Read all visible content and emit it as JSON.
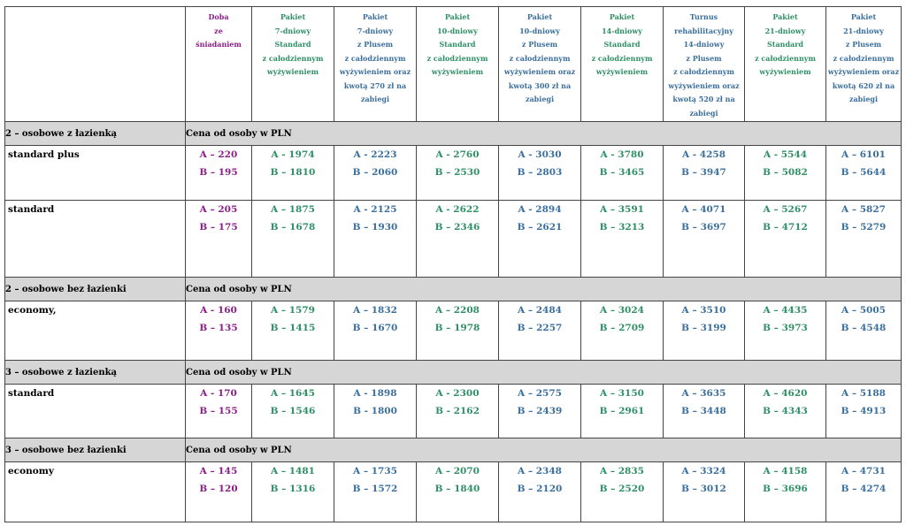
{
  "headers": [
    {
      "lines": [
        "Doba",
        "ze",
        "śniadaniem"
      ],
      "color": "purple"
    },
    {
      "lines": [
        "Pakiet",
        "7-dniowy",
        "Standard",
        "z całodziennym",
        "wyżywieniem"
      ],
      "color": "green"
    },
    {
      "lines": [
        "Pakiet",
        "7-dniowy",
        "z Plusem",
        "z całodziennym",
        "wyżywieniem oraz",
        "kwotą 270 zł na",
        "zabiegi"
      ],
      "color": "blue"
    },
    {
      "lines": [
        "Pakiet",
        "10-dniowy",
        "Standard",
        "z całodziennym",
        "wyżywieniem"
      ],
      "color": "green"
    },
    {
      "lines": [
        "Pakiet",
        "10-dniowy",
        "z Plusem",
        "z całodziennym",
        "wyżywieniem oraz",
        "kwotą 300 zł na",
        "zabiegi"
      ],
      "color": "blue"
    },
    {
      "lines": [
        "Pakiet",
        "14-dniowy",
        "Standard",
        "z całodziennym",
        "wyżywieniem"
      ],
      "color": "green"
    },
    {
      "lines": [
        "Turnus",
        "rehabilitacyjny",
        "14-dniowy",
        "z Plusem",
        "z całodziennym",
        "wyżywieniem oraz",
        "kwotą 520 zł na",
        "zabiegi"
      ],
      "color": "blue"
    },
    {
      "lines": [
        "Pakiet",
        "21-dniowy",
        "Standard",
        "z całodziennym",
        "wyżywieniem"
      ],
      "color": "green"
    },
    {
      "lines": [
        "Pakiet",
        "21-dniowy",
        "z Plusem",
        "z całodziennym",
        "wyżywieniem oraz",
        "kwotą 620 zł na",
        "zabiegi"
      ],
      "color": "blue"
    }
  ],
  "colors": {
    "purple": "#8a1f87",
    "green": "#2f8f66",
    "blue": "#3b6f9c",
    "section_bg": "#d6d6d6"
  },
  "sections": [
    {
      "label": "2 – osobowe z łazienką",
      "note": "Cena od osoby w PLN",
      "rows": [
        {
          "room": "standard plus",
          "height": 62,
          "prices": [
            [
              "A – 220",
              "B – 195"
            ],
            [
              "A - 1974",
              "B – 1810"
            ],
            [
              "A - 2223",
              "B – 2060"
            ],
            [
              "A - 2760",
              "B – 2530"
            ],
            [
              "A - 3030",
              "B – 2803"
            ],
            [
              "A - 3780",
              "B – 3465"
            ],
            [
              "A - 4258",
              "B – 3947"
            ],
            [
              "A - 5544",
              "B – 5082"
            ],
            [
              "A – 6101",
              "B – 5644"
            ]
          ]
        },
        {
          "room": "standard",
          "height": 87,
          "prices": [
            [
              "A – 205",
              "B – 175"
            ],
            [
              "A – 1875",
              "B – 1678"
            ],
            [
              "A - 2125",
              "B – 1930"
            ],
            [
              "A - 2622",
              "B – 2346"
            ],
            [
              "A - 2894",
              "B – 2621"
            ],
            [
              "A – 3591",
              "B – 3213"
            ],
            [
              "A – 4071",
              "B – 3697"
            ],
            [
              "A – 5267",
              "B – 4712"
            ],
            [
              "A – 5827",
              "B – 5279"
            ]
          ]
        }
      ]
    },
    {
      "label": "2 – osobowe bez łazienki",
      "note": "Cena od osoby w PLN",
      "rows": [
        {
          "room": "economy,",
          "height": 67,
          "prices": [
            [
              "A - 160",
              "B – 135"
            ],
            [
              "A – 1579",
              "B – 1415"
            ],
            [
              "A – 1832",
              "B – 1670"
            ],
            [
              "A – 2208",
              "B – 1978"
            ],
            [
              "A – 2484",
              "B – 2257"
            ],
            [
              "A – 3024",
              "B – 2709"
            ],
            [
              "A – 3510",
              "B – 3199"
            ],
            [
              "A – 4435",
              "B – 3973"
            ],
            [
              "A – 5005",
              "B – 4548"
            ]
          ]
        }
      ]
    },
    {
      "label": "3 – osobowe z łazienką",
      "note": "Cena od osoby w PLN",
      "rows": [
        {
          "room": "standard",
          "height": 61,
          "prices": [
            [
              "A - 170",
              "B – 155"
            ],
            [
              "A – 1645",
              "B – 1546"
            ],
            [
              "A - 1898",
              "B - 1800"
            ],
            [
              "A - 2300",
              "B - 2162"
            ],
            [
              "A – 2575",
              "B – 2439"
            ],
            [
              "A – 3150",
              "B – 2961"
            ],
            [
              "A – 3635",
              "B – 3448"
            ],
            [
              "A – 4620",
              "B – 4343"
            ],
            [
              "A – 5188",
              "B – 4913"
            ]
          ]
        }
      ]
    },
    {
      "label": "3 – osobowe bez łazienki",
      "note": "Cena od osoby w PLN",
      "rows": [
        {
          "room": "economy",
          "height": 68,
          "prices": [
            [
              "A – 145",
              "B – 120"
            ],
            [
              "A – 1481",
              "B – 1316"
            ],
            [
              "A – 1735",
              "B – 1572"
            ],
            [
              "A – 2070",
              "B – 1840"
            ],
            [
              "A – 2348",
              "B – 2120"
            ],
            [
              "A – 2835",
              "B – 2520"
            ],
            [
              "A – 3324",
              "B – 3012"
            ],
            [
              "A – 4158",
              "B – 3696"
            ],
            [
              "A – 4731",
              "B – 4274"
            ]
          ]
        }
      ]
    }
  ]
}
